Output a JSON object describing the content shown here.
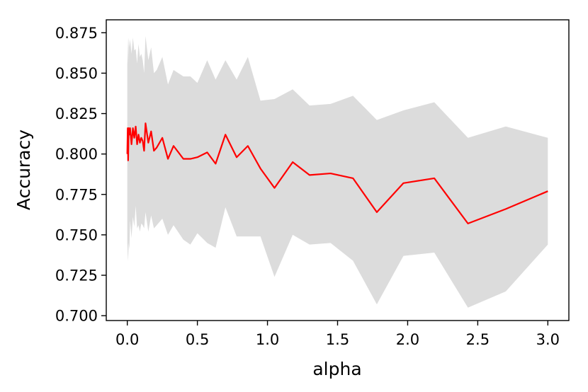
{
  "chart_data": {
    "type": "line",
    "title": "",
    "xlabel": "alpha",
    "ylabel": "Accuracy",
    "xlim": [
      -0.15,
      3.15
    ],
    "ylim": [
      0.697,
      0.883
    ],
    "grid": false,
    "x_ticks": [
      0.0,
      0.5,
      1.0,
      1.5,
      2.0,
      2.5,
      3.0
    ],
    "x_tick_labels": [
      "0.0",
      "0.5",
      "1.0",
      "1.5",
      "2.0",
      "2.5",
      "3.0"
    ],
    "y_ticks": [
      0.7,
      0.725,
      0.75,
      0.775,
      0.8,
      0.825,
      0.85,
      0.875
    ],
    "y_tick_labels": [
      "0.700",
      "0.725",
      "0.750",
      "0.775",
      "0.800",
      "0.825",
      "0.850",
      "0.875"
    ],
    "colors": {
      "line": "#ff0000",
      "band": "#dcdcdc",
      "axes": "#000000"
    },
    "series": [
      {
        "x": [
          0.0,
          0.003,
          0.006,
          0.01,
          0.015,
          0.02,
          0.03,
          0.04,
          0.05,
          0.06,
          0.07,
          0.08,
          0.09,
          0.1,
          0.11,
          0.12,
          0.13,
          0.15,
          0.17,
          0.19,
          0.21,
          0.25,
          0.29,
          0.33,
          0.4,
          0.45,
          0.5,
          0.57,
          0.63,
          0.7,
          0.78,
          0.86,
          0.95,
          1.05,
          1.18,
          1.3,
          1.45,
          1.61,
          1.78,
          1.97,
          2.19,
          2.43,
          2.7,
          3.0
        ],
        "y": [
          0.8,
          0.816,
          0.796,
          0.816,
          0.812,
          0.816,
          0.806,
          0.816,
          0.81,
          0.817,
          0.806,
          0.812,
          0.807,
          0.81,
          0.808,
          0.802,
          0.819,
          0.807,
          0.814,
          0.802,
          0.804,
          0.81,
          0.797,
          0.805,
          0.797,
          0.797,
          0.798,
          0.801,
          0.794,
          0.812,
          0.798,
          0.805,
          0.791,
          0.779,
          0.795,
          0.787,
          0.788,
          0.785,
          0.764,
          0.782,
          0.785,
          0.757,
          0.766,
          0.777
        ],
        "upper": [
          0.855,
          0.872,
          0.856,
          0.872,
          0.866,
          0.871,
          0.862,
          0.872,
          0.864,
          0.865,
          0.856,
          0.868,
          0.86,
          0.862,
          0.858,
          0.85,
          0.873,
          0.858,
          0.866,
          0.85,
          0.852,
          0.86,
          0.843,
          0.852,
          0.848,
          0.848,
          0.844,
          0.858,
          0.846,
          0.858,
          0.846,
          0.86,
          0.833,
          0.834,
          0.84,
          0.83,
          0.831,
          0.836,
          0.821,
          0.827,
          0.832,
          0.81,
          0.817,
          0.81
        ],
        "lower": [
          0.745,
          0.738,
          0.734,
          0.745,
          0.741,
          0.759,
          0.748,
          0.761,
          0.755,
          0.768,
          0.754,
          0.756,
          0.752,
          0.757,
          0.756,
          0.754,
          0.764,
          0.752,
          0.762,
          0.754,
          0.756,
          0.76,
          0.75,
          0.756,
          0.747,
          0.744,
          0.751,
          0.745,
          0.742,
          0.767,
          0.749,
          0.749,
          0.749,
          0.724,
          0.75,
          0.744,
          0.745,
          0.734,
          0.707,
          0.737,
          0.739,
          0.705,
          0.715,
          0.744
        ]
      }
    ]
  }
}
